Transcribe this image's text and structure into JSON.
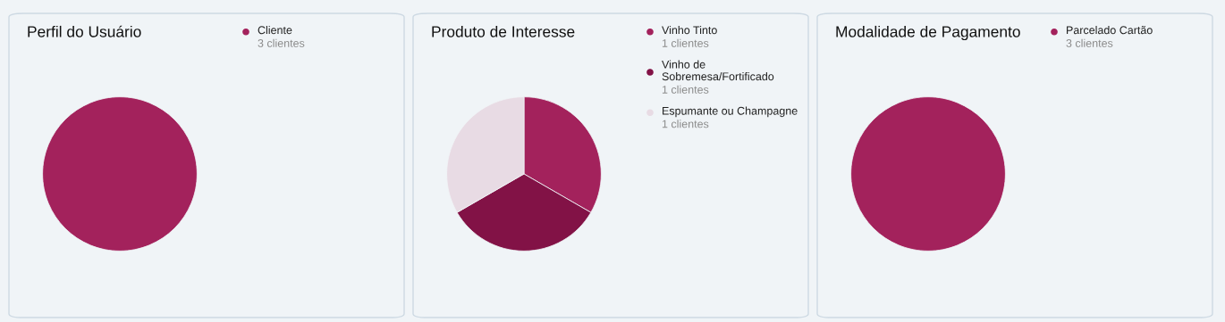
{
  "chart_data": [
    {
      "type": "pie",
      "title": "Perfil do Usuário",
      "categories": [
        "Cliente"
      ],
      "values": [
        3
      ],
      "value_labels": [
        "3 clientes"
      ],
      "colors": [
        "#a3225c"
      ],
      "legend": "top right"
    },
    {
      "type": "pie",
      "title": "Produto de Interesse",
      "categories": [
        "Vinho Tinto",
        "Vinho de Sobremesa/Fortificado",
        "Espumante ou Champagne"
      ],
      "values": [
        1,
        1,
        1
      ],
      "value_labels": [
        "1 clientes",
        "1 clientes",
        "1 clientes"
      ],
      "colors": [
        "#a3225c",
        "#821246",
        "#e8dbe4"
      ],
      "legend": "top right"
    },
    {
      "type": "pie",
      "title": "Modalidade de Pagamento",
      "categories": [
        "Parcelado Cartão"
      ],
      "values": [
        3
      ],
      "value_labels": [
        "3 clientes"
      ],
      "colors": [
        "#a3225c"
      ],
      "legend": "top right"
    }
  ]
}
